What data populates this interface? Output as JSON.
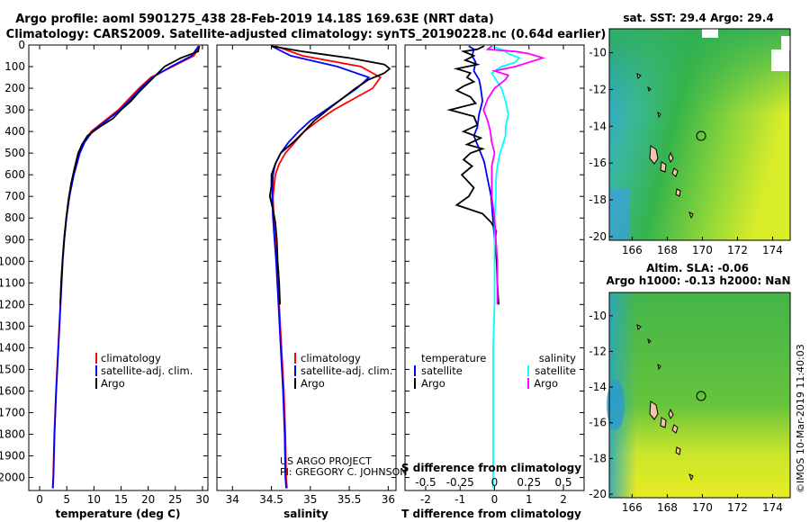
{
  "title_line1": "Argo profile: aoml 5901275_438 28-Feb-2019 14.18S 169.63E (NRT data)",
  "title_line2": "Climatology: CARS2009. Satellite-adjusted climatology: synTS_20190228.nc (0.64d earlier)",
  "credit_line1": "US ARGO PROJECT",
  "credit_line2": "PI: GREGORY C. JOHNSON",
  "timestamp": "©IMOS 10-Mar-2019 11:40:03",
  "colors": {
    "climatology": "#ff0000",
    "satellite": "#0000ff",
    "argo": "#000000",
    "sat_salinity": "#00ffff",
    "clim_salinity": "#ff00ff"
  },
  "depth_ticks": [
    0,
    100,
    200,
    300,
    400,
    500,
    600,
    700,
    800,
    900,
    1000,
    1100,
    1200,
    1300,
    1400,
    1500,
    1600,
    1700,
    1800,
    1900,
    2000
  ],
  "chart_data": [
    {
      "type": "line",
      "name": "temperature",
      "xlabel": "temperature (deg C)",
      "xlim": [
        -2,
        31
      ],
      "ylim": [
        2060,
        0
      ],
      "xticks": [
        0,
        5,
        10,
        15,
        20,
        25,
        30
      ],
      "legend": [
        "climatology",
        "satellite-adj. clim.",
        "Argo"
      ],
      "series": [
        {
          "name": "climatology",
          "color": "#ff0000",
          "depth": [
            5,
            50,
            100,
            150,
            200,
            250,
            300,
            350,
            400,
            450,
            500,
            600,
            700,
            800,
            900,
            1000,
            1200,
            1400,
            1600,
            1800,
            2000,
            2050
          ],
          "values": [
            29.5,
            28.4,
            24.5,
            20.5,
            18.3,
            16.4,
            14.5,
            12.0,
            9.5,
            8.2,
            7.3,
            6.2,
            5.4,
            4.9,
            4.5,
            4.2,
            3.8,
            3.4,
            3.0,
            2.7,
            2.5,
            2.4
          ]
        },
        {
          "name": "satellite-adj. clim.",
          "color": "#0000ff",
          "depth": [
            5,
            50,
            100,
            150,
            200,
            250,
            300,
            350,
            400,
            450,
            500,
            600,
            700,
            800,
            900,
            1000,
            1200,
            1400,
            1600,
            1800,
            2000,
            2050
          ],
          "values": [
            29.3,
            28.0,
            24.2,
            20.8,
            18.6,
            16.8,
            14.8,
            12.3,
            9.7,
            8.3,
            7.4,
            6.3,
            5.5,
            4.95,
            4.55,
            4.25,
            3.85,
            3.45,
            3.05,
            2.75,
            2.55,
            2.45
          ]
        },
        {
          "name": "Argo",
          "color": "#000000",
          "depth": [
            5,
            30,
            60,
            100,
            140,
            180,
            220,
            260,
            300,
            340,
            380,
            420,
            460,
            500,
            560,
            640,
            720,
            800,
            900,
            1000,
            1100,
            1200
          ],
          "values": [
            29.4,
            29.2,
            26.0,
            23.0,
            21.4,
            19.8,
            18.2,
            16.8,
            15.0,
            13.5,
            11.0,
            8.8,
            7.8,
            7.1,
            6.5,
            5.8,
            5.3,
            4.9,
            4.5,
            4.2,
            3.95,
            3.8
          ]
        }
      ]
    },
    {
      "type": "line",
      "name": "salinity",
      "xlabel": "salinity",
      "xlim": [
        33.8,
        36.1
      ],
      "ylim": [
        2060,
        0
      ],
      "xticks": [
        34,
        34.5,
        35,
        35.5,
        36
      ],
      "legend": [
        "climatology",
        "satellite-adj. clim.",
        "Argo"
      ],
      "series": [
        {
          "name": "climatology",
          "color": "#ff0000",
          "depth": [
            5,
            50,
            100,
            150,
            200,
            250,
            300,
            350,
            400,
            450,
            500,
            550,
            600,
            700,
            800,
            900,
            1000,
            1200,
            1400,
            1600,
            1800,
            2000,
            2050
          ],
          "values": [
            34.55,
            34.9,
            35.65,
            35.9,
            35.8,
            35.55,
            35.3,
            35.1,
            34.92,
            34.8,
            34.68,
            34.6,
            34.55,
            34.52,
            34.53,
            34.55,
            34.57,
            34.6,
            34.63,
            34.66,
            34.68,
            34.69,
            34.7
          ]
        },
        {
          "name": "satellite-adj. clim.",
          "color": "#0000ff",
          "depth": [
            5,
            50,
            100,
            150,
            200,
            250,
            300,
            350,
            400,
            450,
            500,
            550,
            600,
            700,
            800,
            900,
            1000,
            1200,
            1400,
            1600,
            1800,
            2000,
            2050
          ],
          "values": [
            34.5,
            34.75,
            35.35,
            35.75,
            35.6,
            35.4,
            35.2,
            35.0,
            34.85,
            34.72,
            34.62,
            34.55,
            34.52,
            34.51,
            34.52,
            34.54,
            34.56,
            34.59,
            34.62,
            34.65,
            34.67,
            34.68,
            34.69
          ]
        },
        {
          "name": "Argo",
          "color": "#000000",
          "depth": [
            5,
            30,
            60,
            90,
            110,
            130,
            160,
            200,
            250,
            300,
            350,
            400,
            450,
            500,
            550,
            600,
            650,
            700,
            760,
            820,
            900,
            1000,
            1100,
            1200
          ],
          "values": [
            34.5,
            34.9,
            35.5,
            35.95,
            36.02,
            35.95,
            35.75,
            35.58,
            35.4,
            35.22,
            35.05,
            34.92,
            34.78,
            34.62,
            34.55,
            34.5,
            34.5,
            34.48,
            34.52,
            34.55,
            34.57,
            34.58,
            34.6,
            34.61
          ]
        }
      ]
    },
    {
      "type": "line",
      "name": "difference",
      "xlabel": "T difference from climatology",
      "xlabel_top": "S difference from climatology",
      "xlim": [
        -2.6,
        2.6
      ],
      "ylim": [
        2060,
        0
      ],
      "xticks": [
        -2,
        -1,
        0,
        1,
        2
      ],
      "xticks_s": [
        -0.5,
        -0.25,
        0,
        0.25,
        0.5
      ],
      "legend_left": [
        "temperature",
        "satellite",
        "Argo"
      ],
      "legend_right": [
        "salinity",
        "satellite",
        "Argo"
      ],
      "series": [
        {
          "name": "T satellite",
          "color": "#0000ff",
          "depth": [
            5,
            20,
            50,
            80,
            120,
            160,
            200,
            260,
            320,
            380,
            420,
            480,
            540,
            620,
            700,
            800,
            900
          ],
          "values": [
            -0.75,
            -0.6,
            -0.65,
            -0.55,
            -0.6,
            -0.45,
            -0.4,
            -0.35,
            -0.45,
            -0.5,
            -0.6,
            -0.45,
            -0.3,
            -0.2,
            -0.1,
            -0.05,
            0.0
          ]
        },
        {
          "name": "T Argo",
          "color": "#000000",
          "depth": [
            5,
            20,
            30,
            50,
            70,
            90,
            110,
            130,
            150,
            170,
            190,
            210,
            240,
            270,
            300,
            330,
            370,
            400,
            430,
            460,
            480,
            500,
            530,
            560,
            600,
            660,
            700,
            740,
            780,
            820,
            860,
            900,
            950,
            1000,
            1050,
            1100,
            1150,
            1200
          ],
          "values": [
            -0.3,
            -0.5,
            -0.9,
            -0.6,
            -0.85,
            -0.5,
            -1.1,
            -0.7,
            -0.8,
            -0.6,
            -0.9,
            -1.1,
            -0.7,
            -0.55,
            -1.3,
            -0.6,
            -0.5,
            -0.9,
            -0.4,
            -0.8,
            -0.35,
            -0.7,
            -0.9,
            -0.65,
            -0.95,
            -0.6,
            -0.75,
            -1.1,
            -0.35,
            -0.1,
            0.05,
            0.02,
            0.04,
            0.06,
            0.07,
            0.08,
            0.1,
            0.12
          ]
        },
        {
          "name": "S satellite",
          "color": "#00ffff",
          "depth": [
            5,
            20,
            40,
            60,
            80,
            100,
            130,
            160,
            200,
            260,
            320,
            380,
            420,
            460,
            500,
            560,
            620,
            700,
            800,
            900,
            1000,
            1200,
            1400,
            1600,
            1800,
            2000,
            2050
          ],
          "values": [
            -0.03,
            0.05,
            0.1,
            0.18,
            0.15,
            0.05,
            -0.02,
            0.01,
            0.05,
            0.08,
            0.1,
            0.08,
            0.08,
            0.06,
            0.04,
            0.02,
            0.01,
            0.01,
            0.0,
            0.0,
            0.0,
            0.0,
            -0.01,
            -0.01,
            -0.01,
            -0.01,
            -0.01
          ]
        },
        {
          "name": "S Argo",
          "color": "#ff00ff",
          "depth": [
            5,
            20,
            30,
            40,
            60,
            80,
            100,
            120,
            140,
            160,
            200,
            250,
            300,
            350,
            400,
            450,
            500,
            560,
            620,
            700,
            800,
            900,
            1000,
            1100,
            1200
          ],
          "values": [
            -0.02,
            -0.05,
            0.15,
            0.25,
            0.35,
            0.25,
            0.15,
            0.0,
            0.1,
            0.08,
            0.0,
            -0.05,
            -0.08,
            -0.05,
            -0.03,
            -0.02,
            0.0,
            -0.02,
            -0.02,
            -0.02,
            0.0,
            0.01,
            0.02,
            0.02,
            0.02
          ]
        }
      ]
    }
  ],
  "maps": [
    {
      "name": "sst-map",
      "title_line1": "sat. SST: 29.4 Argo: 29.4",
      "title_line2": "",
      "xticks": [
        "166",
        "168",
        "170",
        "172",
        "174"
      ],
      "yticks": [
        "-10",
        "-12",
        "-14",
        "-16",
        "-18",
        "-20"
      ],
      "xlim": [
        164.7,
        175
      ],
      "ylim": [
        -8.7,
        -20.2
      ],
      "argo_lon": 169.63,
      "argo_lat": -14.18
    },
    {
      "name": "sla-map",
      "title_line1": "Altim. SLA: -0.06",
      "title_line2": "Argo h1000: -0.13 h2000: NaN",
      "xticks": [
        "166",
        "168",
        "170",
        "172",
        "174"
      ],
      "yticks": [
        "-10",
        "-12",
        "-14",
        "-16",
        "-18",
        "-20"
      ],
      "xlim": [
        164.7,
        175
      ],
      "ylim": [
        -8.7,
        -20.2
      ],
      "argo_lon": 169.63,
      "argo_lat": -14.18
    }
  ]
}
